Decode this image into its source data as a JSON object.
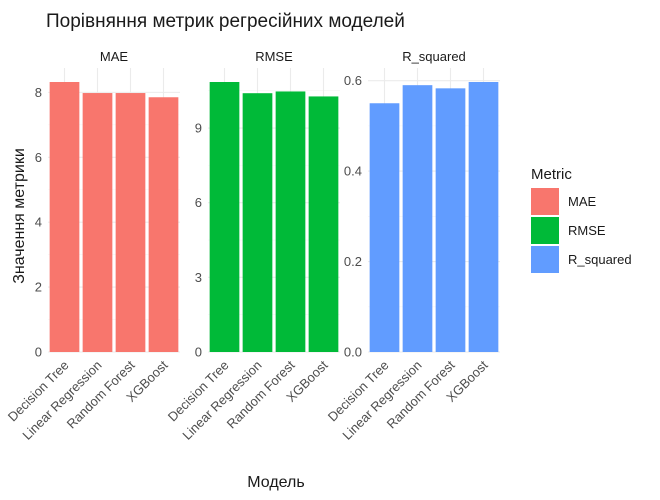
{
  "chart_data": {
    "type": "bar",
    "title": "Порівняння метрик регресійних моделей",
    "xlabel": "Модель",
    "ylabel": "Значення метрики",
    "categories": [
      "Decision Tree",
      "Linear Regression",
      "Random Forest",
      "XGBoost"
    ],
    "legend": {
      "title": "Metric",
      "position": "right"
    },
    "grid": true,
    "facets": [
      {
        "name": "MAE",
        "color": "#F8766D",
        "values": [
          8.32,
          7.98,
          7.98,
          7.85
        ],
        "ylim": [
          0,
          8.32
        ],
        "yticks": [
          0,
          2,
          4,
          6,
          8
        ],
        "ytick_labels": [
          "0",
          "2",
          "4",
          "6",
          "8"
        ]
      },
      {
        "name": "RMSE",
        "color": "#00BA38",
        "values": [
          10.85,
          10.4,
          10.47,
          10.27
        ],
        "ylim": [
          0,
          10.85
        ],
        "yticks": [
          0,
          3,
          6,
          9
        ],
        "ytick_labels": [
          "0",
          "3",
          "6",
          "9"
        ]
      },
      {
        "name": "R_squared",
        "color": "#619CFF",
        "values": [
          0.55,
          0.59,
          0.583,
          0.597
        ],
        "ylim": [
          0,
          0.597
        ],
        "yticks": [
          0,
          0.2,
          0.4,
          0.6
        ],
        "ytick_labels": [
          "0.0",
          "0.2",
          "0.4",
          "0.6"
        ]
      }
    ]
  }
}
